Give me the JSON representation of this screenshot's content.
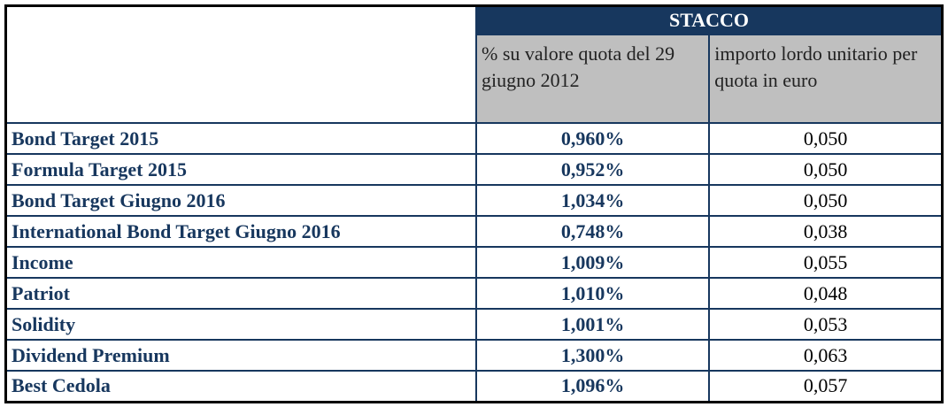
{
  "header": {
    "group": "STACCO",
    "col_pct": "% su valore quota del 29 giugno 2012",
    "col_amount": "importo lordo unitario per quota in euro"
  },
  "rows": [
    {
      "name": "Bond Target 2015",
      "pct": "0,960%",
      "amount": "0,050"
    },
    {
      "name": "Formula Target 2015",
      "pct": "0,952%",
      "amount": "0,050"
    },
    {
      "name": "Bond Target Giugno 2016",
      "pct": "1,034%",
      "amount": "0,050"
    },
    {
      "name": "International Bond Target Giugno 2016",
      "pct": "0,748%",
      "amount": "0,038"
    },
    {
      "name": "Income",
      "pct": "1,009%",
      "amount": "0,055"
    },
    {
      "name": "Patriot",
      "pct": "1,010%",
      "amount": "0,048"
    },
    {
      "name": "Solidity",
      "pct": "1,001%",
      "amount": "0,053"
    },
    {
      "name": "Dividend Premium",
      "pct": "1,300%",
      "amount": "0,063"
    },
    {
      "name": "Best Cedola",
      "pct": "1,096%",
      "amount": "0,057"
    }
  ],
  "colors": {
    "navy": "#17375E",
    "header_gray": "#BFBFBF"
  }
}
